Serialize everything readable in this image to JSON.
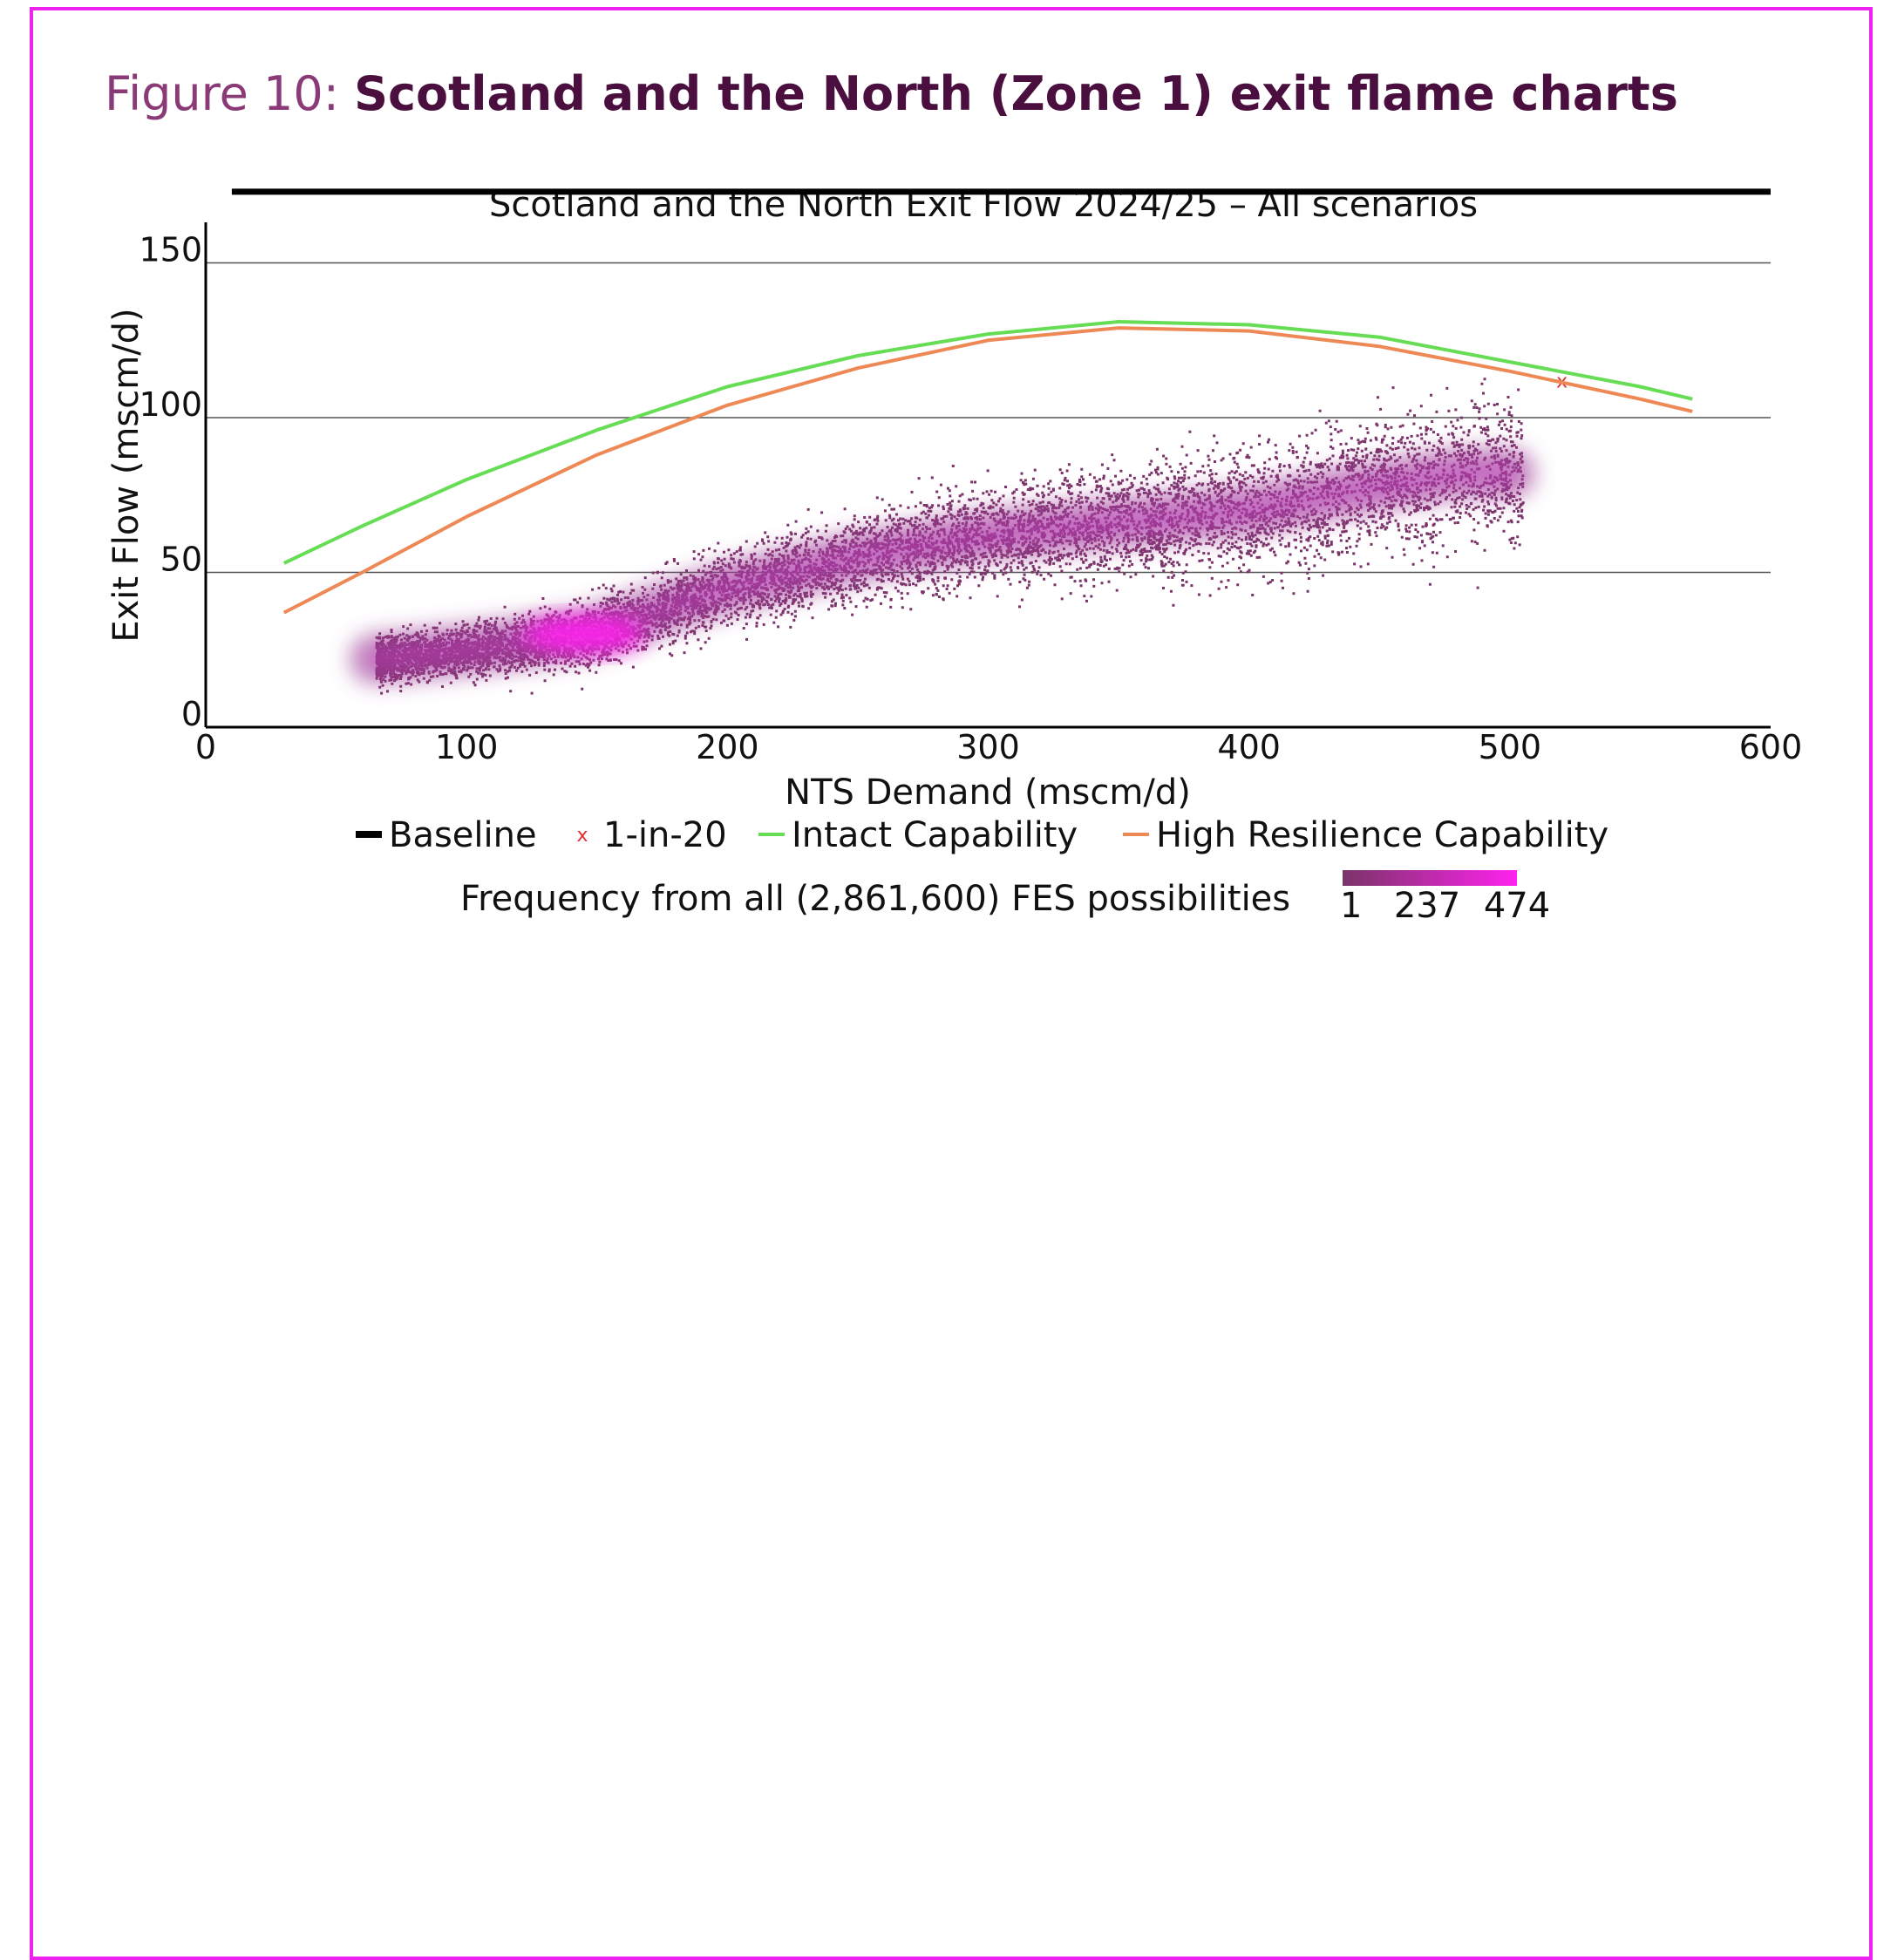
{
  "figure": {
    "label": "Figure 10:",
    "title": "Scotland and the North (Zone 1) exit flame charts"
  },
  "colors": {
    "frame": "#ee22ee",
    "baseline": "#000000",
    "one_in_20": "#e03030",
    "intact": "#66dd55",
    "high_resilience": "#ee8855",
    "density_low": "#7a3468",
    "density_high": "#ff22ee"
  },
  "chart_data": {
    "type": "scatter",
    "title": "Scotland and the North Exit Flow 2024/25 – All scenarios",
    "xlabel": "NTS Demand (mscm/d)",
    "ylabel": "Exit Flow (mscm/d)",
    "xlim": [
      0,
      600
    ],
    "ylim": [
      0,
      180
    ],
    "xticks": [
      0,
      100,
      200,
      300,
      400,
      500,
      600
    ],
    "yticks": [
      0,
      50,
      100,
      150
    ],
    "grid": "horizontal",
    "legend_position": "bottom",
    "series": [
      {
        "name": "Baseline",
        "kind": "line",
        "x": [
          10,
          600
        ],
        "y": [
          173,
          173
        ]
      },
      {
        "name": "1-in-20",
        "kind": "marker",
        "x": [
          520
        ],
        "y": [
          112
        ]
      },
      {
        "name": "Intact Capability",
        "kind": "line",
        "x": [
          30,
          60,
          100,
          150,
          200,
          250,
          300,
          350,
          400,
          450,
          500,
          550,
          570
        ],
        "y": [
          53,
          65,
          80,
          96,
          110,
          120,
          127,
          131,
          130,
          126,
          118,
          110,
          106
        ]
      },
      {
        "name": "High Resilience Capability",
        "kind": "line",
        "x": [
          30,
          60,
          100,
          150,
          200,
          250,
          300,
          350,
          400,
          450,
          500,
          550,
          570
        ],
        "y": [
          37,
          50,
          68,
          88,
          104,
          116,
          125,
          129,
          128,
          123,
          115,
          106,
          102
        ]
      }
    ],
    "density": {
      "name": "Frequency from all (2,861,600) FES possibilities",
      "colorbar_ticks": [
        "1",
        "237",
        "474"
      ],
      "ridge_x": [
        65,
        100,
        145,
        200,
        250,
        300,
        350,
        400,
        450,
        480,
        500
      ],
      "ridge_y": [
        22,
        25,
        30,
        45,
        55,
        62,
        66,
        70,
        78,
        82,
        82
      ],
      "peak": [
        145,
        30
      ],
      "point_count": 9000
    }
  }
}
